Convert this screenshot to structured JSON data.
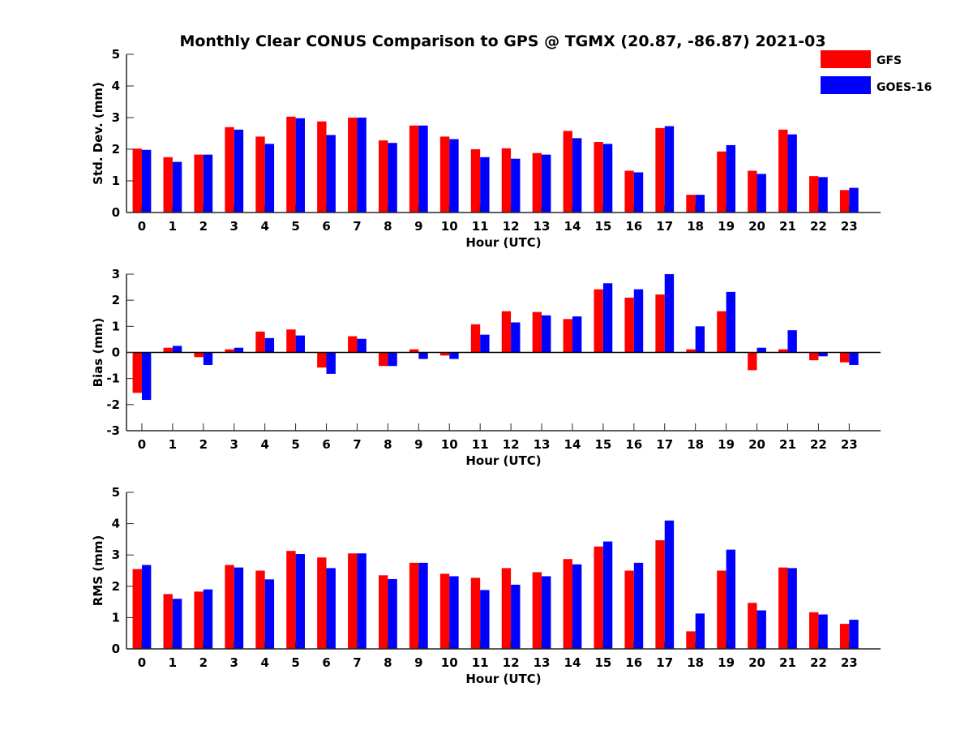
{
  "title": "Monthly Clear CONUS Comparison to GPS @ TGMX (20.87, -86.87) 2021-03",
  "colors": {
    "GFS": "#ff0000",
    "GOES-16": "#0000ff"
  },
  "legend": {
    "position": "top-right",
    "entries": [
      "GFS",
      "GOES-16"
    ]
  },
  "chart_data": [
    {
      "type": "bar",
      "xlabel": "Hour (UTC)",
      "ylabel": "Std. Dev. (mm)",
      "ylim": [
        0,
        5
      ],
      "yticks": [
        0,
        1,
        2,
        3,
        4,
        5
      ],
      "categories": [
        "0",
        "1",
        "2",
        "3",
        "4",
        "5",
        "6",
        "7",
        "8",
        "9",
        "10",
        "11",
        "12",
        "13",
        "14",
        "15",
        "16",
        "17",
        "18",
        "19",
        "20",
        "21",
        "22",
        "23"
      ],
      "series": [
        {
          "name": "GFS",
          "values": [
            2.02,
            1.75,
            1.83,
            2.7,
            2.4,
            3.03,
            2.88,
            3.0,
            2.28,
            2.75,
            2.4,
            2.0,
            2.03,
            1.88,
            2.58,
            2.23,
            1.32,
            2.67,
            0.56,
            1.93,
            1.32,
            2.62,
            1.15,
            0.71
          ]
        },
        {
          "name": "GOES-16",
          "values": [
            1.98,
            1.6,
            1.83,
            2.62,
            2.17,
            2.98,
            2.45,
            3.0,
            2.2,
            2.75,
            2.32,
            1.75,
            1.7,
            1.83,
            2.35,
            2.17,
            1.27,
            2.73,
            0.56,
            2.13,
            1.22,
            2.47,
            1.12,
            0.78
          ]
        }
      ]
    },
    {
      "type": "bar",
      "xlabel": "Hour (UTC)",
      "ylabel": "Bias (mm)",
      "ylim": [
        -3,
        3
      ],
      "yticks": [
        -3,
        -2,
        -1,
        0,
        1,
        2,
        3
      ],
      "categories": [
        "0",
        "1",
        "2",
        "3",
        "4",
        "5",
        "6",
        "7",
        "8",
        "9",
        "10",
        "11",
        "12",
        "13",
        "14",
        "15",
        "16",
        "17",
        "18",
        "19",
        "20",
        "21",
        "22",
        "23"
      ],
      "series": [
        {
          "name": "GFS",
          "values": [
            -1.55,
            0.18,
            -0.18,
            0.12,
            0.8,
            0.88,
            -0.58,
            0.62,
            -0.52,
            0.12,
            -0.12,
            1.08,
            1.58,
            1.55,
            1.28,
            2.42,
            2.1,
            2.22,
            0.12,
            1.58,
            -0.68,
            0.12,
            -0.3,
            -0.38
          ]
        },
        {
          "name": "GOES-16",
          "values": [
            -1.82,
            0.25,
            -0.48,
            0.18,
            0.55,
            0.65,
            -0.82,
            0.52,
            -0.52,
            -0.25,
            -0.25,
            0.68,
            1.15,
            1.42,
            1.38,
            2.65,
            2.42,
            3.0,
            1.0,
            2.32,
            0.18,
            0.85,
            -0.15,
            -0.48
          ]
        }
      ]
    },
    {
      "type": "bar",
      "xlabel": "Hour (UTC)",
      "ylabel": "RMS (mm)",
      "ylim": [
        0,
        5
      ],
      "yticks": [
        0,
        1,
        2,
        3,
        4,
        5
      ],
      "categories": [
        "0",
        "1",
        "2",
        "3",
        "4",
        "5",
        "6",
        "7",
        "8",
        "9",
        "10",
        "11",
        "12",
        "13",
        "14",
        "15",
        "16",
        "17",
        "18",
        "19",
        "20",
        "21",
        "22",
        "23"
      ],
      "series": [
        {
          "name": "GFS",
          "values": [
            2.55,
            1.75,
            1.83,
            2.68,
            2.5,
            3.13,
            2.92,
            3.05,
            2.35,
            2.75,
            2.4,
            2.27,
            2.58,
            2.45,
            2.87,
            3.27,
            2.5,
            3.47,
            0.56,
            2.5,
            1.47,
            2.6,
            1.17,
            0.8
          ]
        },
        {
          "name": "GOES-16",
          "values": [
            2.68,
            1.6,
            1.9,
            2.6,
            2.22,
            3.03,
            2.58,
            3.05,
            2.23,
            2.75,
            2.32,
            1.88,
            2.05,
            2.32,
            2.7,
            3.43,
            2.75,
            4.1,
            1.13,
            3.17,
            1.23,
            2.58,
            1.1,
            0.93
          ]
        }
      ]
    }
  ]
}
